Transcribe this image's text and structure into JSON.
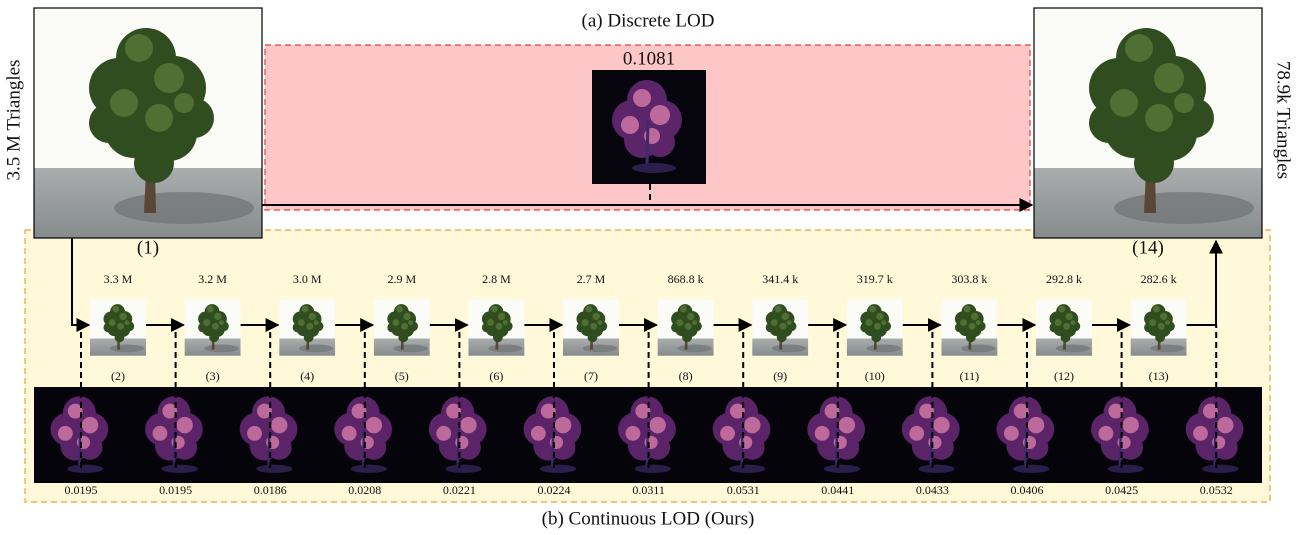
{
  "title_a": "(a) Discrete LOD",
  "discrete_error": "0.1081",
  "left_label": "3.5 M Triangles",
  "right_label": "78.9k Triangles",
  "source_index": "(1)",
  "target_index": "(14)",
  "steps": [
    {
      "triangles": "3.3 M",
      "index": "(2)"
    },
    {
      "triangles": "3.2 M",
      "index": "(3)"
    },
    {
      "triangles": "3.0 M",
      "index": "(4)"
    },
    {
      "triangles": "2.9 M",
      "index": "(5)"
    },
    {
      "triangles": "2.8 M",
      "index": "(6)"
    },
    {
      "triangles": "2.7 M",
      "index": "(7)"
    },
    {
      "triangles": "868.8 k",
      "index": "(8)"
    },
    {
      "triangles": "341.4 k",
      "index": "(9)"
    },
    {
      "triangles": "319.7 k",
      "index": "(10)"
    },
    {
      "triangles": "303.8 k",
      "index": "(11)"
    },
    {
      "triangles": "292.8 k",
      "index": "(12)"
    },
    {
      "triangles": "282.6 k",
      "index": "(13)"
    }
  ],
  "errors": [
    "0.0195",
    "0.0195",
    "0.0186",
    "0.0208",
    "0.0221",
    "0.0224",
    "0.0311",
    "0.0531",
    "0.0441",
    "0.0433",
    "0.0406",
    "0.0425",
    "0.0532"
  ],
  "title_b": "(b) Continuous LOD (Ours)"
}
